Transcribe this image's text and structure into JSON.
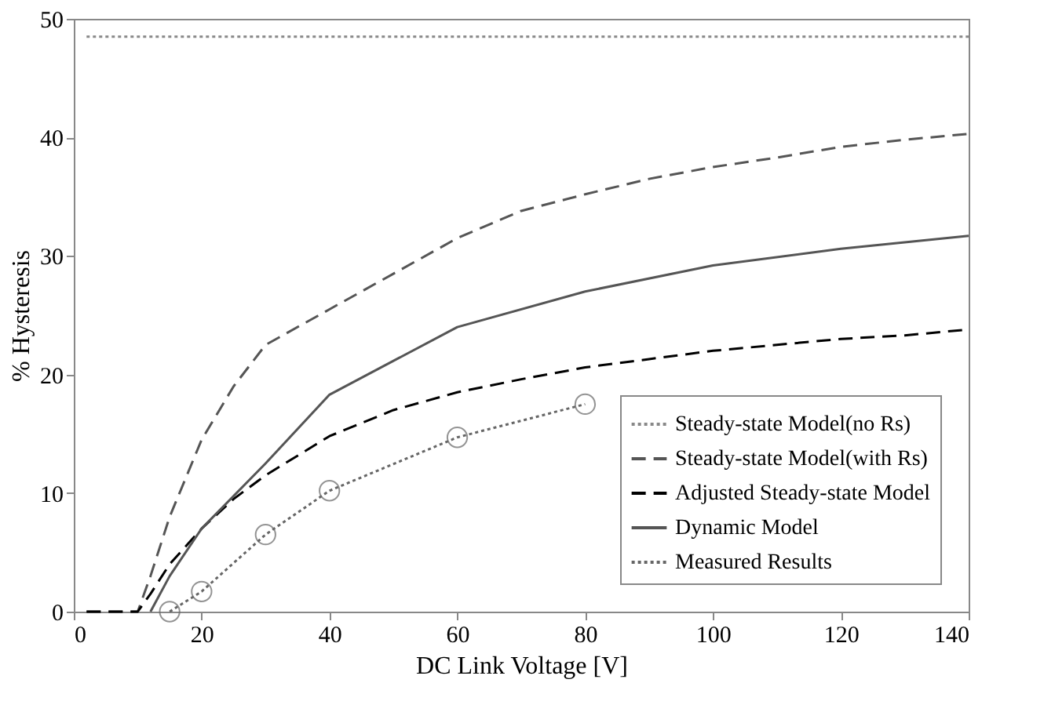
{
  "chart_data": {
    "type": "line",
    "xlabel": "DC Link Voltage [V]",
    "ylabel": "% Hysteresis",
    "xlim": [
      0,
      140
    ],
    "ylim": [
      0,
      50
    ],
    "xticks": [
      0,
      20,
      40,
      60,
      80,
      100,
      120,
      140
    ],
    "yticks": [
      0,
      10,
      20,
      30,
      40,
      50
    ],
    "grid": false,
    "legend": "bottom right",
    "series": [
      {
        "name": "Steady-state Model(no Rs)",
        "color": "#888888",
        "line_style": "dotted",
        "marker": "none",
        "x": [
          2,
          140
        ],
        "values": [
          48.5,
          48.5
        ]
      },
      {
        "name": "Steady-state Model(with Rs)",
        "color": "#555555",
        "line_style": "dashed",
        "marker": "none",
        "x": [
          2,
          10,
          12,
          15,
          20,
          25,
          30,
          40,
          50,
          60,
          70,
          80,
          90,
          100,
          110,
          120,
          130,
          140
        ],
        "values": [
          0,
          0,
          3,
          8,
          14.5,
          19,
          22.5,
          25.5,
          28.5,
          31.5,
          33.8,
          35.2,
          36.5,
          37.5,
          38.3,
          39.2,
          39.8,
          40.3
        ]
      },
      {
        "name": "Adjusted Steady-state Model",
        "color": "#000000",
        "line_style": "dashed",
        "marker": "none",
        "x": [
          2,
          10,
          12,
          15,
          20,
          25,
          30,
          40,
          50,
          60,
          70,
          80,
          90,
          100,
          110,
          120,
          130,
          140
        ],
        "values": [
          0,
          0,
          1.5,
          4,
          7,
          9.5,
          11.5,
          14.8,
          17,
          18.5,
          19.6,
          20.6,
          21.3,
          22,
          22.5,
          23,
          23.3,
          23.8
        ]
      },
      {
        "name": "Dynamic Model",
        "color": "#555555",
        "line_style": "solid",
        "marker": "none",
        "x": [
          12,
          15,
          20,
          30,
          40,
          60,
          80,
          100,
          120,
          140
        ],
        "values": [
          0,
          3,
          7,
          12.5,
          18.3,
          24,
          27,
          29.2,
          30.6,
          31.7
        ]
      },
      {
        "name": "Measured Results",
        "color": "#666666",
        "line_style": "dotted",
        "marker": "circle",
        "x": [
          15,
          20,
          30,
          40,
          60,
          80
        ],
        "values": [
          0,
          1.7,
          6.5,
          10.2,
          14.7,
          17.5
        ]
      }
    ]
  }
}
